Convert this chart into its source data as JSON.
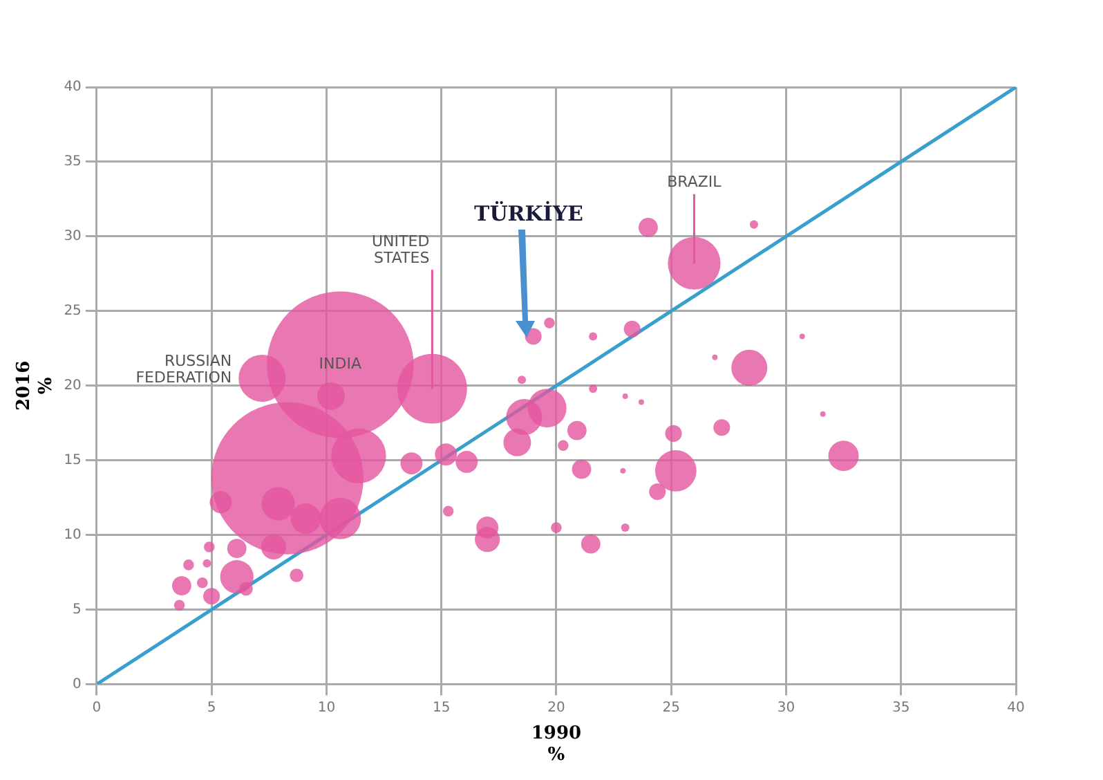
{
  "chart_data": {
    "type": "bubble",
    "xlabel": "1990\n%",
    "ylabel": "2016\n%",
    "xlim": [
      0,
      40
    ],
    "ylim": [
      0,
      40
    ],
    "xticks": [
      0,
      5,
      10,
      15,
      20,
      25,
      30,
      35,
      40
    ],
    "yticks": [
      0,
      5,
      10,
      15,
      20,
      25,
      30,
      35,
      40
    ],
    "grid": true,
    "legend": false,
    "series": [
      {
        "type": "bubble",
        "color": "#e3559f",
        "x": [
          8.3,
          10.6,
          7.2,
          14.6,
          26.0,
          19.0,
          11.4,
          10.2,
          10.6,
          9.1,
          7.9,
          5.4,
          7.7,
          6.1,
          6.1,
          13.7,
          15.2,
          16.1,
          15.3,
          17.0,
          17.0,
          18.6,
          19.6,
          18.3,
          24.0,
          28.6,
          19.7,
          21.6,
          23.3,
          30.7,
          26.9,
          28.4,
          18.5,
          21.6,
          23.0,
          23.7,
          20.9,
          20.3,
          25.1,
          27.2,
          31.6,
          25.2,
          21.1,
          22.9,
          24.4,
          32.5,
          20.0,
          23.0,
          21.5,
          4.9,
          4.0,
          3.7,
          4.6,
          5.0,
          3.6,
          6.5,
          8.7,
          4.8
        ],
        "values": [
          13.8,
          21.4,
          20.5,
          19.8,
          28.2,
          23.3,
          15.3,
          19.3,
          11.1,
          11.1,
          12.1,
          12.2,
          9.2,
          7.2,
          9.1,
          14.8,
          15.4,
          14.9,
          11.6,
          10.5,
          9.7,
          17.9,
          18.5,
          16.2,
          30.6,
          30.8,
          24.2,
          23.3,
          23.8,
          23.3,
          21.9,
          21.2,
          20.4,
          19.8,
          19.3,
          18.9,
          17.0,
          16.0,
          16.8,
          17.2,
          18.1,
          14.3,
          14.4,
          14.3,
          12.9,
          15.3,
          10.5,
          10.5,
          9.4,
          9.2,
          8.0,
          6.6,
          6.8,
          5.9,
          5.3,
          6.4,
          7.3,
          8.1
        ],
        "sizes": [
          1,
          0.93,
          0.096,
          0.21,
          0.12,
          0.012,
          0.13,
          0.033,
          0.074,
          0.04,
          0.048,
          0.021,
          0.027,
          0.048,
          0.016,
          0.021,
          0.021,
          0.021,
          0.005,
          0.021,
          0.027,
          0.056,
          0.065,
          0.033,
          0.016,
          0.003,
          0.005,
          0.003,
          0.012,
          0.0013,
          0.0013,
          0.056,
          0.003,
          0.003,
          0.0013,
          0.0013,
          0.016,
          0.005,
          0.012,
          0.012,
          0.0013,
          0.074,
          0.016,
          0.0013,
          0.012,
          0.04,
          0.005,
          0.003,
          0.016,
          0.005,
          0.005,
          0.016,
          0.005,
          0.012,
          0.005,
          0.008,
          0.008,
          0.003
        ]
      },
      {
        "type": "line",
        "color": "#3a9fcc",
        "x": [
          0,
          40
        ],
        "values": [
          0,
          40
        ],
        "marker": "none"
      }
    ],
    "annotations": [
      {
        "text": "RUSSIAN\nFEDERATION",
        "x": 7.2,
        "y": 20.5
      },
      {
        "text": "INDIA",
        "x": 10.6,
        "y": 21.4
      },
      {
        "text": "UNITED\nSTATES",
        "x": 14.6,
        "y": 19.8
      },
      {
        "text": "BRAZIL",
        "x": 26.0,
        "y": 28.2
      },
      "TÜRKİYE"
    ]
  }
}
